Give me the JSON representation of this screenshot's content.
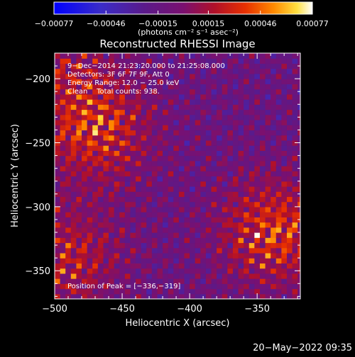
{
  "chart_data": {
    "type": "heatmap",
    "title": "Reconstructed RHESSI Image",
    "xlabel": "Heliocentric X (arcsec)",
    "ylabel": "Heliocentric Y (arcsec)",
    "xlim": [
      -500,
      -318
    ],
    "ylim": [
      -372,
      -180
    ],
    "x_ticks": [
      -500,
      -450,
      -400,
      -350
    ],
    "y_ticks": [
      -350,
      -300,
      -250,
      -200
    ],
    "x_tick_labels": [
      "−500",
      "−450",
      "−400",
      "−350"
    ],
    "y_tick_labels": [
      "−350",
      "−300",
      "−250",
      "−200"
    ],
    "colorbar": {
      "range": [
        -0.00077,
        0.00077
      ],
      "tick_values": [
        -0.00077,
        -0.00046,
        -0.00015,
        0.00015,
        0.00046,
        0.00077
      ],
      "tick_labels": [
        "−0.00077",
        "−0.00046",
        "−0.00015",
        "0.00015",
        "0.00046",
        "0.00077"
      ],
      "unit_label": "(photons cm⁻² s⁻¹ asec⁻²)"
    },
    "annotations": {
      "line1": "9−Dec−2014 21:23:20.000 to 21:25:08.000",
      "line2": "Detectors: 3F 6F 7F 9F, Att 0",
      "line3": "Energy Range: 12.0 − 25.0 keV",
      "line4": "Clean    Total counts: 938.",
      "peak": "Position of Peak = [−336,−319]"
    },
    "sources": [
      {
        "x": -470,
        "y": -240,
        "peak": 0.0007
      },
      {
        "x": -336,
        "y": -319,
        "peak": 0.00077
      },
      {
        "x": -492,
        "y": -340,
        "peak": 0.00055
      },
      {
        "x": -495,
        "y": -195,
        "peak": 0.00035
      }
    ]
  },
  "timestamp": "20−May−2022 09:35",
  "colors": {
    "background": "#000000",
    "negative_end": "#0000ff",
    "mid": "#5a1a7a",
    "positive_end": "#ffffff"
  }
}
